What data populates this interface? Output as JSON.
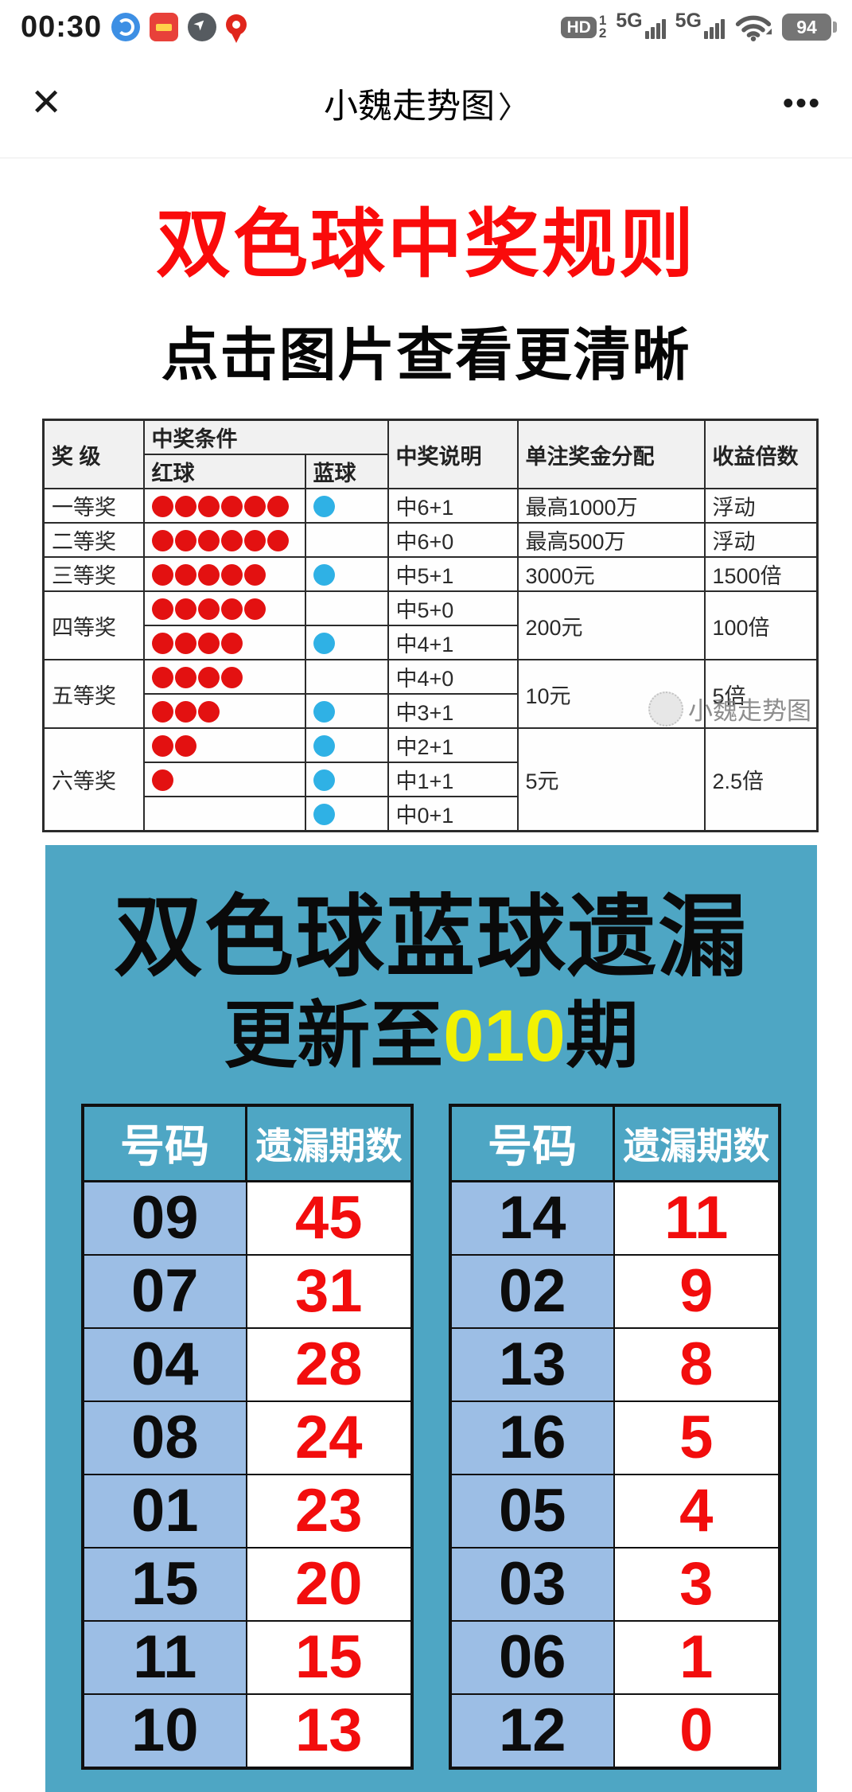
{
  "status_bar": {
    "time": "00:30",
    "hd_label": "HD",
    "sim1": "1",
    "sim2": "2",
    "network1": "5G",
    "network2": "5G",
    "battery": "94"
  },
  "nav": {
    "close": "✕",
    "title": "小魏走势图",
    "chevron": "〉",
    "more": "•••"
  },
  "article": {
    "title": "双色球中奖规则",
    "subtitle": "点击图片查看更清晰"
  },
  "prize_table": {
    "headers": {
      "level": "奖 级",
      "condition": "中奖条件",
      "red": "红球",
      "blue": "蓝球",
      "desc": "中奖说明",
      "prize": "单注奖金分配",
      "multiplier": "收益倍数"
    },
    "rows": [
      {
        "level": "一等奖",
        "prize": "最高1000万",
        "multiplier": "浮动",
        "sub": [
          {
            "red": 6,
            "blue": 1,
            "desc": "中6+1"
          }
        ]
      },
      {
        "level": "二等奖",
        "prize": "最高500万",
        "multiplier": "浮动",
        "sub": [
          {
            "red": 6,
            "blue": 0,
            "desc": "中6+0"
          }
        ]
      },
      {
        "level": "三等奖",
        "prize": "3000元",
        "multiplier": "1500倍",
        "sub": [
          {
            "red": 5,
            "blue": 1,
            "desc": "中5+1"
          }
        ]
      },
      {
        "level": "四等奖",
        "prize": "200元",
        "multiplier": "100倍",
        "sub": [
          {
            "red": 5,
            "blue": 0,
            "desc": "中5+0"
          },
          {
            "red": 4,
            "blue": 1,
            "desc": "中4+1"
          }
        ]
      },
      {
        "level": "五等奖",
        "prize": "10元",
        "multiplier": "5倍",
        "sub": [
          {
            "red": 4,
            "blue": 0,
            "desc": "中4+0"
          },
          {
            "red": 3,
            "blue": 1,
            "desc": "中3+1"
          }
        ]
      },
      {
        "level": "六等奖",
        "prize": "5元",
        "multiplier": "2.5倍",
        "sub": [
          {
            "red": 2,
            "blue": 1,
            "desc": "中2+1"
          },
          {
            "red": 1,
            "blue": 1,
            "desc": "中1+1"
          },
          {
            "red": 0,
            "blue": 1,
            "desc": "中0+1"
          }
        ]
      }
    ],
    "watermark": "小魏走势图"
  },
  "omission": {
    "title": "双色球蓝球遗漏",
    "subtitle_prefix": "更新至",
    "subtitle_highlight": "010",
    "subtitle_suffix": "期",
    "col_number": "号码",
    "col_missing": "遗漏期数",
    "left_rows": [
      [
        "09",
        "45"
      ],
      [
        "07",
        "31"
      ],
      [
        "04",
        "28"
      ],
      [
        "08",
        "24"
      ],
      [
        "01",
        "23"
      ],
      [
        "15",
        "20"
      ],
      [
        "11",
        "15"
      ],
      [
        "10",
        "13"
      ]
    ],
    "right_rows": [
      [
        "14",
        "11"
      ],
      [
        "02",
        "9"
      ],
      [
        "13",
        "8"
      ],
      [
        "16",
        "5"
      ],
      [
        "05",
        "4"
      ],
      [
        "03",
        "3"
      ],
      [
        "06",
        "1"
      ],
      [
        "12",
        "0"
      ]
    ]
  },
  "colors": {
    "title_red": "#FA0B0B",
    "teal_background": "#4EA6C4",
    "number_cell_blue": "#9CBEE5",
    "missing_number_red": "#F20D0D",
    "red_ball": "#E31111",
    "blue_ball": "#2FB1E5",
    "highlight_yellow": "#F2F203"
  }
}
